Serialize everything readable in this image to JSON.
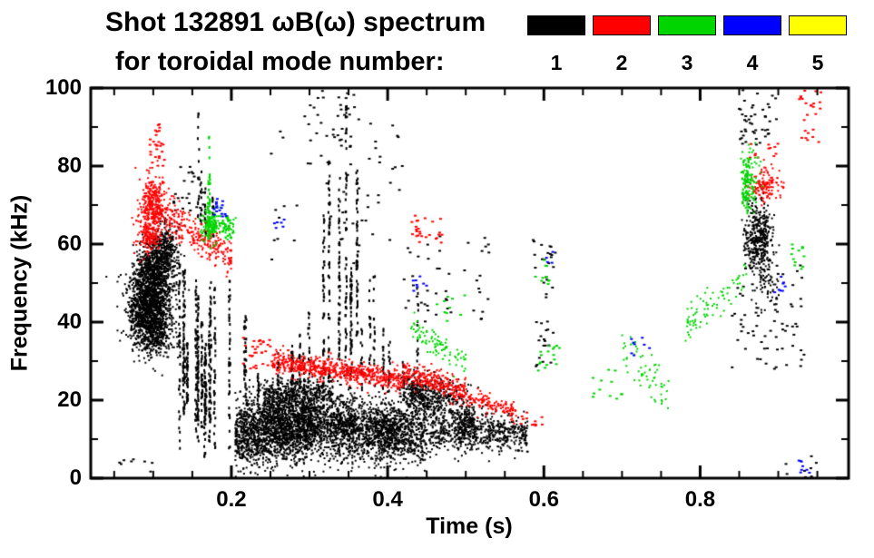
{
  "chart_data": {
    "type": "scatter",
    "title": "Shot 132891 ωB(ω) spectrum",
    "subtitle": "for toroidal mode number:",
    "xlabel": "Time (s)",
    "ylabel": "Frequency (kHz)",
    "xlim": [
      0.02,
      0.99
    ],
    "ylim": [
      0,
      100
    ],
    "xticks": [
      {
        "v": 0.2,
        "label": "0.2"
      },
      {
        "v": 0.4,
        "label": "0.4"
      },
      {
        "v": 0.6,
        "label": "0.6"
      },
      {
        "v": 0.8,
        "label": "0.8"
      }
    ],
    "yticks": [
      {
        "v": 0,
        "label": "0"
      },
      {
        "v": 20,
        "label": "20"
      },
      {
        "v": 40,
        "label": "40"
      },
      {
        "v": 60,
        "label": "60"
      },
      {
        "v": 80,
        "label": "80"
      },
      {
        "v": 100,
        "label": "100"
      }
    ],
    "x_minor_step": 0.05,
    "y_minor_step": 10,
    "axis_color": "#000000",
    "series": [
      {
        "name": "toroidal mode n=1",
        "label": "1",
        "color": "#000000",
        "clusters": [
          {
            "kind": "blob",
            "cx": 0.095,
            "cy": 45,
            "sx": 0.014,
            "sy": 5.5,
            "n": 1400
          },
          {
            "kind": "blob",
            "cx": 0.105,
            "cy": 54,
            "sx": 0.012,
            "sy": 4,
            "n": 500
          },
          {
            "kind": "blob",
            "cx": 0.117,
            "cy": 59,
            "sx": 0.009,
            "sy": 3,
            "n": 200
          },
          {
            "kind": "blob",
            "cx": 0.1,
            "cy": 37,
            "sx": 0.012,
            "sy": 3,
            "n": 250
          },
          {
            "kind": "blob",
            "cx": 0.875,
            "cy": 62,
            "sx": 0.009,
            "sy": 4.5,
            "n": 400
          },
          {
            "kind": "blob",
            "cx": 0.885,
            "cy": 50,
            "sx": 0.008,
            "sy": 3,
            "n": 60
          },
          {
            "kind": "blob",
            "cx": 0.465,
            "cy": 20,
            "sx": 0.018,
            "sy": 2.5,
            "n": 300
          },
          {
            "kind": "blob",
            "cx": 0.435,
            "cy": 22,
            "sx": 0.01,
            "sy": 2.5,
            "n": 200
          },
          {
            "kind": "band",
            "x0": 0.205,
            "x1": 0.3,
            "ya": 11,
            "yb": 13,
            "j": 4.5,
            "n": 1500
          },
          {
            "kind": "band",
            "x0": 0.3,
            "x1": 0.45,
            "ya": 13,
            "yb": 11,
            "j": 4,
            "n": 1400
          },
          {
            "kind": "band",
            "x0": 0.45,
            "x1": 0.58,
            "ya": 12,
            "yb": 11,
            "j": 2.5,
            "n": 600
          },
          {
            "kind": "blob",
            "cx": 0.26,
            "cy": 16,
            "sx": 0.012,
            "sy": 4,
            "n": 250
          },
          {
            "kind": "blob",
            "cx": 0.3,
            "cy": 15,
            "sx": 0.01,
            "sy": 4,
            "n": 220
          },
          {
            "kind": "blob",
            "cx": 0.345,
            "cy": 14,
            "sx": 0.012,
            "sy": 4,
            "n": 250
          },
          {
            "kind": "blob",
            "cx": 0.4,
            "cy": 13,
            "sx": 0.01,
            "sy": 3.5,
            "n": 220
          },
          {
            "kind": "blob",
            "cx": 0.5,
            "cy": 14,
            "sx": 0.008,
            "sy": 2.5,
            "n": 150
          },
          {
            "kind": "band",
            "x0": 0.24,
            "x1": 0.33,
            "ya": 21,
            "yb": 23,
            "j": 2,
            "n": 350
          },
          {
            "kind": "streaks",
            "x0": 0.13,
            "x1": 0.205,
            "y0": 5,
            "y1": 64,
            "cols": 14,
            "per": 40
          },
          {
            "kind": "streaks",
            "x0": 0.3,
            "x1": 0.365,
            "y0": 15,
            "y1": 100,
            "cols": 6,
            "per": 55
          },
          {
            "kind": "streaks",
            "x0": 0.21,
            "x1": 0.3,
            "y0": 16,
            "y1": 45,
            "cols": 9,
            "per": 18
          },
          {
            "kind": "streaks",
            "x0": 0.36,
            "x1": 0.44,
            "y0": 15,
            "y1": 55,
            "cols": 7,
            "per": 16
          },
          {
            "kind": "streaks",
            "x0": 0.155,
            "x1": 0.185,
            "y0": 60,
            "y1": 97,
            "cols": 4,
            "per": 14
          },
          {
            "kind": "scatter",
            "x0": 0.25,
            "x1": 0.42,
            "y0": 55,
            "y1": 95,
            "n": 60
          },
          {
            "kind": "scatter",
            "x0": 0.42,
            "x1": 0.53,
            "y0": 40,
            "y1": 62,
            "n": 45
          },
          {
            "kind": "scatter",
            "x0": 0.585,
            "x1": 0.615,
            "y0": 28,
            "y1": 62,
            "n": 40
          },
          {
            "kind": "scatter",
            "x0": 0.84,
            "x1": 0.935,
            "y0": 28,
            "y1": 55,
            "n": 70
          },
          {
            "kind": "scatter",
            "x0": 0.85,
            "x1": 0.9,
            "y0": 85,
            "y1": 100,
            "n": 45
          },
          {
            "kind": "scatter",
            "x0": 0.055,
            "x1": 0.1,
            "y0": 0,
            "y1": 5,
            "n": 8
          },
          {
            "kind": "scatter",
            "x0": 0.9,
            "x1": 0.95,
            "y0": 0,
            "y1": 6,
            "n": 8
          },
          {
            "kind": "scatter",
            "x0": 0.125,
            "x1": 0.165,
            "y0": 68,
            "y1": 80,
            "n": 25
          },
          {
            "kind": "scatter",
            "x0": 0.3,
            "x1": 0.36,
            "y0": 85,
            "y1": 100,
            "n": 30
          }
        ]
      },
      {
        "name": "toroidal mode n=2",
        "label": "2",
        "color": "#ff0000",
        "clusters": [
          {
            "kind": "blob",
            "cx": 0.1,
            "cy": 70,
            "sx": 0.009,
            "sy": 3.5,
            "n": 350
          },
          {
            "kind": "blob",
            "cx": 0.094,
            "cy": 62,
            "sx": 0.007,
            "sy": 2.5,
            "n": 140
          },
          {
            "kind": "band",
            "x0": 0.115,
            "x1": 0.2,
            "ya": 67,
            "yb": 57,
            "j": 2.5,
            "n": 260
          },
          {
            "kind": "scatter",
            "x0": 0.095,
            "x1": 0.115,
            "y0": 80,
            "y1": 92,
            "n": 28
          },
          {
            "kind": "band",
            "x0": 0.255,
            "x1": 0.42,
            "ya": 30,
            "yb": 25,
            "j": 1.4,
            "n": 650
          },
          {
            "kind": "band",
            "x0": 0.42,
            "x1": 0.5,
            "ya": 27,
            "yb": 22,
            "j": 1.4,
            "n": 280
          },
          {
            "kind": "band",
            "x0": 0.5,
            "x1": 0.565,
            "ya": 21,
            "yb": 17,
            "j": 1.2,
            "n": 130
          },
          {
            "kind": "scatter",
            "x0": 0.215,
            "x1": 0.255,
            "y0": 28,
            "y1": 36,
            "n": 35
          },
          {
            "kind": "scatter",
            "x0": 0.43,
            "x1": 0.47,
            "y0": 60,
            "y1": 68,
            "n": 26
          },
          {
            "kind": "scatter",
            "x0": 0.57,
            "x1": 0.6,
            "y0": 13,
            "y1": 17,
            "n": 12
          },
          {
            "kind": "blob",
            "cx": 0.885,
            "cy": 75,
            "sx": 0.011,
            "sy": 2.2,
            "n": 130
          },
          {
            "kind": "scatter",
            "x0": 0.86,
            "x1": 0.9,
            "y0": 82,
            "y1": 86,
            "n": 12
          },
          {
            "kind": "scatter",
            "x0": 0.925,
            "x1": 0.955,
            "y0": 86,
            "y1": 100,
            "n": 25
          }
        ]
      },
      {
        "name": "toroidal mode n=3",
        "label": "3",
        "color": "#00d500",
        "clusters": [
          {
            "kind": "blob",
            "cx": 0.175,
            "cy": 65,
            "sx": 0.006,
            "sy": 2,
            "n": 140
          },
          {
            "kind": "blob",
            "cx": 0.196,
            "cy": 64,
            "sx": 0.0035,
            "sy": 1.5,
            "n": 60
          },
          {
            "kind": "streaks",
            "x0": 0.167,
            "x1": 0.177,
            "y0": 55,
            "y1": 88,
            "cols": 2,
            "per": 22
          },
          {
            "kind": "band",
            "x0": 0.43,
            "x1": 0.5,
            "ya": 38,
            "yb": 30,
            "j": 2,
            "n": 90
          },
          {
            "kind": "band",
            "x0": 0.7,
            "x1": 0.76,
            "ya": 35,
            "yb": 21,
            "j": 3,
            "n": 60
          },
          {
            "kind": "band",
            "x0": 0.78,
            "x1": 0.86,
            "ya": 38,
            "yb": 52,
            "j": 2.5,
            "n": 80
          },
          {
            "kind": "blob",
            "cx": 0.864,
            "cy": 76,
            "sx": 0.006,
            "sy": 5,
            "n": 90
          },
          {
            "kind": "streaks",
            "x0": 0.852,
            "x1": 0.875,
            "y0": 65,
            "y1": 92,
            "cols": 3,
            "per": 16
          },
          {
            "kind": "scatter",
            "x0": 0.59,
            "x1": 0.62,
            "y0": 27,
            "y1": 34,
            "n": 16
          },
          {
            "kind": "scatter",
            "x0": 0.588,
            "x1": 0.61,
            "y0": 49,
            "y1": 56,
            "n": 10
          },
          {
            "kind": "scatter",
            "x0": 0.915,
            "x1": 0.935,
            "y0": 53,
            "y1": 60,
            "n": 12
          },
          {
            "kind": "scatter",
            "x0": 0.655,
            "x1": 0.7,
            "y0": 20,
            "y1": 28,
            "n": 12
          },
          {
            "kind": "scatter",
            "x0": 0.46,
            "x1": 0.5,
            "y0": 40,
            "y1": 47,
            "n": 10
          }
        ]
      },
      {
        "name": "toroidal mode n=4",
        "label": "4",
        "color": "#0000ff",
        "clusters": [
          {
            "kind": "scatter",
            "x0": 0.175,
            "x1": 0.196,
            "y0": 67,
            "y1": 72,
            "n": 16
          },
          {
            "kind": "scatter",
            "x0": 0.255,
            "x1": 0.268,
            "y0": 63,
            "y1": 67,
            "n": 6
          },
          {
            "kind": "scatter",
            "x0": 0.432,
            "x1": 0.452,
            "y0": 48,
            "y1": 52,
            "n": 8
          },
          {
            "kind": "scatter",
            "x0": 0.71,
            "x1": 0.74,
            "y0": 30,
            "y1": 36,
            "n": 8
          },
          {
            "kind": "scatter",
            "x0": 0.893,
            "x1": 0.912,
            "y0": 47,
            "y1": 52,
            "n": 8
          },
          {
            "kind": "scatter",
            "x0": 0.925,
            "x1": 0.945,
            "y0": 1,
            "y1": 5,
            "n": 8
          },
          {
            "kind": "scatter",
            "x0": 0.598,
            "x1": 0.612,
            "y0": 55,
            "y1": 58,
            "n": 4
          }
        ]
      },
      {
        "name": "toroidal mode n=5",
        "label": "5",
        "color": "#ffff00",
        "clusters": []
      }
    ]
  }
}
